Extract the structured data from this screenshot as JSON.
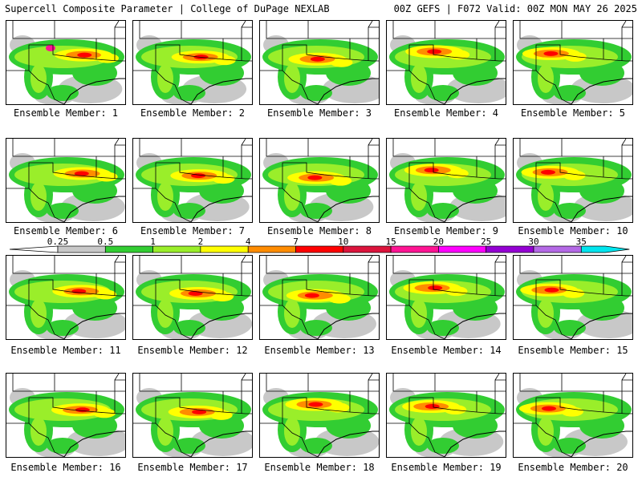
{
  "header": {
    "title": "Supercell Composite Parameter | College of DuPage NEXLAB",
    "run_info": "00Z GEFS | F072 Valid: 00Z MON MAY 26 2025"
  },
  "caption_prefix": "Ensemble Member:",
  "members": [
    {
      "number": "1"
    },
    {
      "number": "2"
    },
    {
      "number": "3"
    },
    {
      "number": "4"
    },
    {
      "number": "5"
    },
    {
      "number": "6"
    },
    {
      "number": "7"
    },
    {
      "number": "8"
    },
    {
      "number": "9"
    },
    {
      "number": "10"
    },
    {
      "number": "11"
    },
    {
      "number": "12"
    },
    {
      "number": "13"
    },
    {
      "number": "14"
    },
    {
      "number": "15"
    },
    {
      "number": "16"
    },
    {
      "number": "17"
    },
    {
      "number": "18"
    },
    {
      "number": "19"
    },
    {
      "number": "20"
    }
  ],
  "colorbar": {
    "labels": [
      "0.25",
      "0.5",
      "1",
      "2",
      "4",
      "7",
      "10",
      "15",
      "20",
      "25",
      "30",
      "35"
    ],
    "colors": [
      "#c8c8c8",
      "#32cd32",
      "#9aee2a",
      "#ffff00",
      "#ff8c00",
      "#ff0000",
      "#dc143c",
      "#ff1493",
      "#ff00ff",
      "#9400d3",
      "#b469e6",
      "#00e5ee"
    ],
    "under_color": "#ffffff"
  }
}
